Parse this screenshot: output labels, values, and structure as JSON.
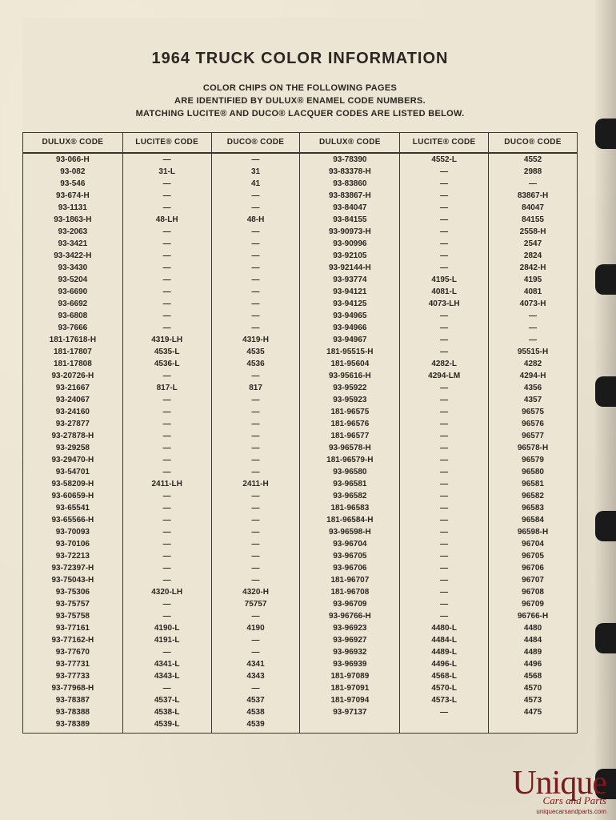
{
  "title": "1964 TRUCK COLOR INFORMATION",
  "subtitle_line1": "COLOR CHIPS ON THE FOLLOWING PAGES",
  "subtitle_line2": "ARE IDENTIFIED BY DULUX® ENAMEL CODE NUMBERS.",
  "subtitle_line3": "MATCHING LUCITE® AND DUCO® LACQUER CODES ARE LISTED BELOW.",
  "columns": [
    "DULUX® CODE",
    "LUCITE® CODE",
    "DUCO® CODE",
    "DULUX® CODE",
    "LUCITE® CODE",
    "DUCO® CODE"
  ],
  "rows": [
    [
      "93-066-H",
      "—",
      "—",
      "93-78390",
      "4552-L",
      "4552"
    ],
    [
      "93-082",
      "31-L",
      "31",
      "93-83378-H",
      "—",
      "2988"
    ],
    [
      "93-546",
      "—",
      "41",
      "93-83860",
      "—",
      "—"
    ],
    [
      "93-674-H",
      "—",
      "—",
      "93-83867-H",
      "—",
      "83867-H"
    ],
    [
      "93-1131",
      "—",
      "—",
      "93-84047",
      "—",
      "84047"
    ],
    [
      "93-1863-H",
      "48-LH",
      "48-H",
      "93-84155",
      "—",
      "84155"
    ],
    [
      "93-2063",
      "—",
      "—",
      "93-90973-H",
      "—",
      "2558-H"
    ],
    [
      "93-3421",
      "—",
      "—",
      "93-90996",
      "—",
      "2547"
    ],
    [
      "93-3422-H",
      "—",
      "—",
      "93-92105",
      "—",
      "2824"
    ],
    [
      "93-3430",
      "—",
      "—",
      "93-92144-H",
      "—",
      "2842-H"
    ],
    [
      "93-5204",
      "—",
      "—",
      "93-93774",
      "4195-L",
      "4195"
    ],
    [
      "93-6690",
      "—",
      "—",
      "93-94121",
      "4081-L",
      "4081"
    ],
    [
      "93-6692",
      "—",
      "—",
      "93-94125",
      "4073-LH",
      "4073-H"
    ],
    [
      "93-6808",
      "—",
      "—",
      "93-94965",
      "—",
      "—"
    ],
    [
      "93-7666",
      "—",
      "—",
      "93-94966",
      "—",
      "—"
    ],
    [
      "181-17618-H",
      "4319-LH",
      "4319-H",
      "93-94967",
      "—",
      "—"
    ],
    [
      "181-17807",
      "4535-L",
      "4535",
      "181-95515-H",
      "—",
      "95515-H"
    ],
    [
      "181-17808",
      "4536-L",
      "4536",
      "181-95604",
      "4282-L",
      "4282"
    ],
    [
      "93-20726-H",
      "—",
      "—",
      "93-95616-H",
      "4294-LM",
      "4294-H"
    ],
    [
      "93-21667",
      "817-L",
      "817",
      "93-95922",
      "—",
      "4356"
    ],
    [
      "93-24067",
      "—",
      "—",
      "93-95923",
      "—",
      "4357"
    ],
    [
      "93-24160",
      "—",
      "—",
      "181-96575",
      "—",
      "96575"
    ],
    [
      "93-27877",
      "—",
      "—",
      "181-96576",
      "—",
      "96576"
    ],
    [
      "93-27878-H",
      "—",
      "—",
      "181-96577",
      "—",
      "96577"
    ],
    [
      "93-29258",
      "—",
      "—",
      "93-96578-H",
      "—",
      "96578-H"
    ],
    [
      "93-29470-H",
      "—",
      "—",
      "181-96579-H",
      "—",
      "96579"
    ],
    [
      "93-54701",
      "—",
      "—",
      "93-96580",
      "—",
      "96580"
    ],
    [
      "93-58209-H",
      "2411-LH",
      "2411-H",
      "93-96581",
      "—",
      "96581"
    ],
    [
      "93-60659-H",
      "—",
      "—",
      "93-96582",
      "—",
      "96582"
    ],
    [
      "93-65541",
      "—",
      "—",
      "181-96583",
      "—",
      "96583"
    ],
    [
      "93-65566-H",
      "—",
      "—",
      "181-96584-H",
      "—",
      "96584"
    ],
    [
      "93-70093",
      "—",
      "—",
      "93-96598-H",
      "—",
      "96598-H"
    ],
    [
      "93-70106",
      "—",
      "—",
      "93-96704",
      "—",
      "96704"
    ],
    [
      "93-72213",
      "—",
      "—",
      "93-96705",
      "—",
      "96705"
    ],
    [
      "93-72397-H",
      "—",
      "—",
      "93-96706",
      "—",
      "96706"
    ],
    [
      "93-75043-H",
      "—",
      "—",
      "181-96707",
      "—",
      "96707"
    ],
    [
      "93-75306",
      "4320-LH",
      "4320-H",
      "181-96708",
      "—",
      "96708"
    ],
    [
      "93-75757",
      "—",
      "75757",
      "93-96709",
      "—",
      "96709"
    ],
    [
      "93-75758",
      "—",
      "—",
      "93-96766-H",
      "—",
      "96766-H"
    ],
    [
      "93-77161",
      "4190-L",
      "4190",
      "93-96923",
      "4480-L",
      "4480"
    ],
    [
      "93-77162-H",
      "4191-L",
      "—",
      "93-96927",
      "4484-L",
      "4484"
    ],
    [
      "93-77670",
      "—",
      "—",
      "93-96932",
      "4489-L",
      "4489"
    ],
    [
      "93-77731",
      "4341-L",
      "4341",
      "93-96939",
      "4496-L",
      "4496"
    ],
    [
      "93-77733",
      "4343-L",
      "4343",
      "181-97089",
      "4568-L",
      "4568"
    ],
    [
      "93-77968-H",
      "—",
      "—",
      "181-97091",
      "4570-L",
      "4570"
    ],
    [
      "93-78387",
      "4537-L",
      "4537",
      "181-97094",
      "4573-L",
      "4573"
    ],
    [
      "93-78388",
      "4538-L",
      "4538",
      "93-97137",
      "—",
      "4475"
    ],
    [
      "93-78389",
      "4539-L",
      "4539",
      "",
      "",
      ""
    ]
  ],
  "watermark": {
    "script": "Unique",
    "sub": "Cars and Parts",
    "url": "uniquecarsandparts.com"
  },
  "punch_hole_tops": [
    148,
    330,
    470,
    638,
    778,
    960
  ],
  "colors": {
    "paper": "#ede5d3",
    "ink": "#2a2622",
    "border": "#3a3630",
    "watermark": "#7a1a1a"
  },
  "typography": {
    "title_fontsize": 20,
    "subtitle_fontsize": 11,
    "table_fontsize": 10,
    "font_family": "Arial, Helvetica, sans-serif"
  }
}
